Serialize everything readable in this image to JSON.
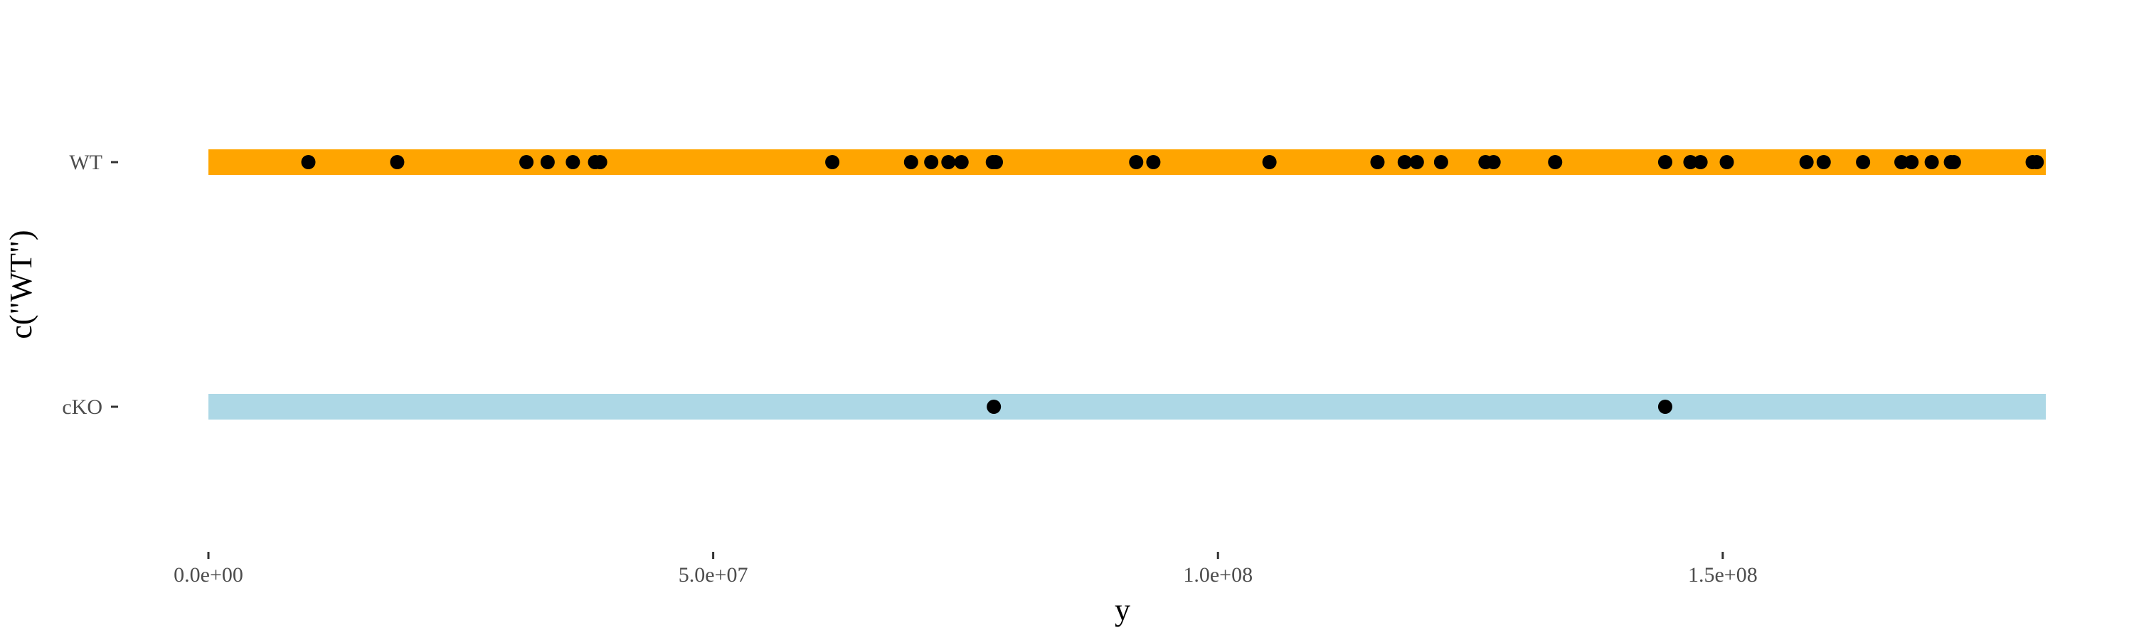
{
  "chart_data": {
    "type": "scatter",
    "title": "",
    "xlabel": "y",
    "ylabel": "c(\"WT\")",
    "xlim": [
      0,
      182000000
    ],
    "xticks": [
      0,
      50000000,
      100000000,
      150000000
    ],
    "xtick_labels": [
      "0.0e+00",
      "5.0e+07",
      "1.0e+08",
      "1.5e+08"
    ],
    "categories": [
      "WT",
      "cKO"
    ],
    "bands": [
      {
        "category": "WT",
        "start": 0,
        "end": 182000000,
        "color": "#FFA500"
      },
      {
        "category": "cKO",
        "start": 0,
        "end": 182000000,
        "color": "#ADD8E6"
      }
    ],
    "series": [
      {
        "category": "WT",
        "color": "#000000",
        "x": [
          9900000,
          18700000,
          31500000,
          33600000,
          36100000,
          38300000,
          38800000,
          61800000,
          69600000,
          71600000,
          73300000,
          74600000,
          77700000,
          78000000,
          91900000,
          93600000,
          105100000,
          115800000,
          118500000,
          119700000,
          122100000,
          126500000,
          127300000,
          133400000,
          144300000,
          146800000,
          147800000,
          150400000,
          158300000,
          160000000,
          163900000,
          167700000,
          168700000,
          170700000,
          172600000,
          172900000,
          180700000,
          181100000
        ]
      },
      {
        "category": "cKO",
        "color": "#000000",
        "x": [
          77800000,
          144300000
        ]
      }
    ],
    "grid": false,
    "legend": "none"
  }
}
